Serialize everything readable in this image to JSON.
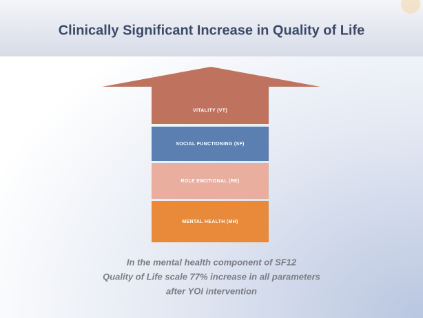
{
  "header": {
    "title": "Clinically Significant Increase in Quality of Life"
  },
  "blocks": [
    {
      "label": "VITALITY (VT)"
    },
    {
      "label": "SOCIAL FUNCTIONING (SF)"
    },
    {
      "label": "ROLE EMOTIONAL (RE)"
    },
    {
      "label": "MENTAL HEALTH (MH)"
    }
  ],
  "caption": [
    "In the mental health component of SF12",
    "Quality of Life scale 77% increase in all parameters",
    "after YOI intervention"
  ]
}
